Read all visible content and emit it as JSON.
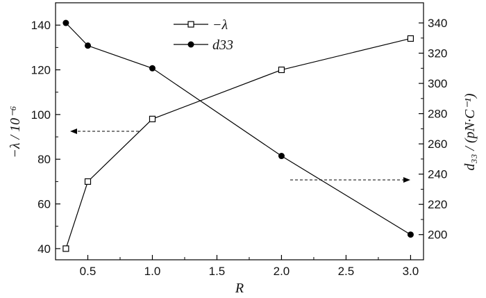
{
  "chart_data": {
    "type": "line",
    "xlabel": "R",
    "ylabel_left": "−λ / 10⁻⁶",
    "ylabel_right": "d₃₃ / (pN·C⁻¹)",
    "xlim": [
      0.25,
      3.1
    ],
    "ylim_left": [
      35,
      150
    ],
    "ylim_right": [
      183.33,
      353.33
    ],
    "x_ticks": [
      0.5,
      1.0,
      1.5,
      2.0,
      2.5,
      3.0
    ],
    "x_tick_labels": [
      "0.5",
      "1.0",
      "1.5",
      "2.0",
      "2.5",
      "3.0"
    ],
    "y_left_ticks": [
      40,
      60,
      80,
      100,
      120,
      140
    ],
    "y_left_tick_labels": [
      "40",
      "60",
      "80",
      "100",
      "120",
      "140"
    ],
    "y_right_ticks": [
      200,
      220,
      240,
      260,
      280,
      300,
      320,
      340
    ],
    "y_right_tick_labels": [
      "200",
      "220",
      "240",
      "260",
      "280",
      "300",
      "320",
      "340"
    ],
    "series": [
      {
        "name": "−λ",
        "axis": "left",
        "marker": "open-square",
        "x": [
          0.33,
          0.5,
          1.0,
          2.0,
          3.0
        ],
        "values": [
          40,
          70,
          98,
          120,
          134
        ]
      },
      {
        "name": "d33",
        "axis": "right",
        "marker": "filled-circle",
        "x": [
          0.33,
          0.5,
          1.0,
          2.0,
          3.0
        ],
        "values": [
          340,
          325,
          310,
          252,
          200
        ]
      }
    ],
    "legend_placement": "top-center",
    "grid": false
  }
}
